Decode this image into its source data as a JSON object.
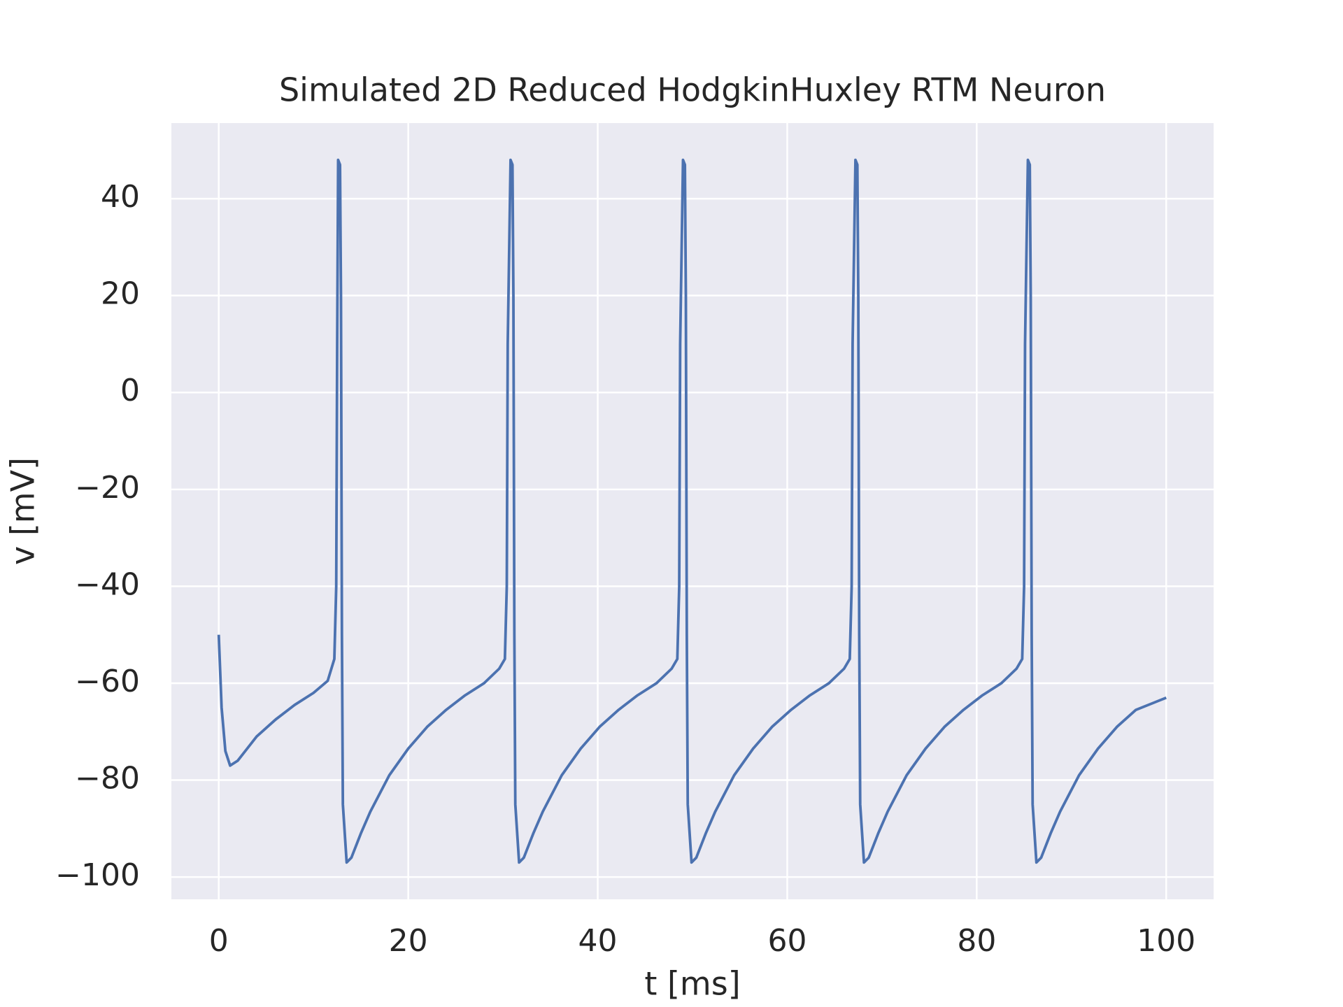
{
  "chart_data": {
    "type": "line",
    "title": "Simulated 2D Reduced HodgkinHuxley RTM Neuron",
    "x_label": "t [ms]",
    "y_label": "v [mV]",
    "x": [
      0,
      0.3,
      0.7,
      1.2,
      2,
      3,
      4,
      6,
      8,
      10,
      11.5,
      12.2,
      12.4,
      12.5,
      12.6,
      12.8,
      12.9,
      13.0,
      13.1,
      13.5,
      14.0,
      15.0,
      16.0,
      18.0,
      20.0,
      22.0,
      24.0,
      26.0,
      28.0,
      29.6,
      30.2,
      30.4,
      30.5,
      30.8,
      31.0,
      31.1,
      31.2,
      31.3,
      31.7,
      32.2,
      33.2,
      34.2,
      36.2,
      38.2,
      40.2,
      42.2,
      44.2,
      46.2,
      47.8,
      48.4,
      48.6,
      48.7,
      49.0,
      49.2,
      49.3,
      49.4,
      49.5,
      49.9,
      50.4,
      51.4,
      52.4,
      54.4,
      56.4,
      58.4,
      60.4,
      62.4,
      64.4,
      66.0,
      66.6,
      66.8,
      66.9,
      67.2,
      67.4,
      67.5,
      67.6,
      67.7,
      68.1,
      68.6,
      69.6,
      70.6,
      72.6,
      74.6,
      76.6,
      78.6,
      80.6,
      82.6,
      84.2,
      84.8,
      85.0,
      85.1,
      85.4,
      85.6,
      85.7,
      85.8,
      85.9,
      86.3,
      86.8,
      87.8,
      88.8,
      90.8,
      92.8,
      94.8,
      96.8,
      100
    ],
    "series": [
      {
        "name": "v",
        "color": "#4c72b0",
        "values": [
          -50,
          -65,
          -74,
          -77,
          -76,
          -73.5,
          -71,
          -67.5,
          -64.5,
          -62,
          -59.5,
          -55,
          -40,
          10,
          48,
          47,
          20,
          -50,
          -85,
          -97,
          -96,
          -91,
          -86.5,
          -79,
          -73.5,
          -69,
          -65.5,
          -62.5,
          -60,
          -57,
          -55,
          -40,
          10,
          48,
          47,
          20,
          -50,
          -85,
          -97,
          -96,
          -91,
          -86.5,
          -79,
          -73.5,
          -69,
          -65.5,
          -62.5,
          -60,
          -57,
          -55,
          -40,
          10,
          48,
          47,
          20,
          -50,
          -85,
          -97,
          -96,
          -91,
          -86.5,
          -79,
          -73.5,
          -69,
          -65.5,
          -62.5,
          -60,
          -57,
          -55,
          -40,
          10,
          48,
          47,
          20,
          -50,
          -85,
          -97,
          -96,
          -91,
          -86.5,
          -79,
          -73.5,
          -69,
          -65.5,
          -62.5,
          -60,
          -57,
          -55,
          -40,
          10,
          48,
          47,
          20,
          -50,
          -85,
          -97,
          -96,
          -91,
          -86.5,
          -79,
          -73.5,
          -69,
          -65.5,
          -63
        ]
      }
    ],
    "xlim": [
      -5,
      105
    ],
    "xticks": [
      0,
      20,
      40,
      60,
      80,
      100
    ],
    "ylim": [
      -104.6,
      55.6
    ],
    "yticks": [
      {
        "value": -100,
        "label": "−100"
      },
      {
        "value": -80,
        "label": "−80"
      },
      {
        "value": -60,
        "label": "−60"
      },
      {
        "value": -40,
        "label": "−40"
      },
      {
        "value": -20,
        "label": "−20"
      },
      0,
      20,
      40
    ],
    "grid": true
  }
}
